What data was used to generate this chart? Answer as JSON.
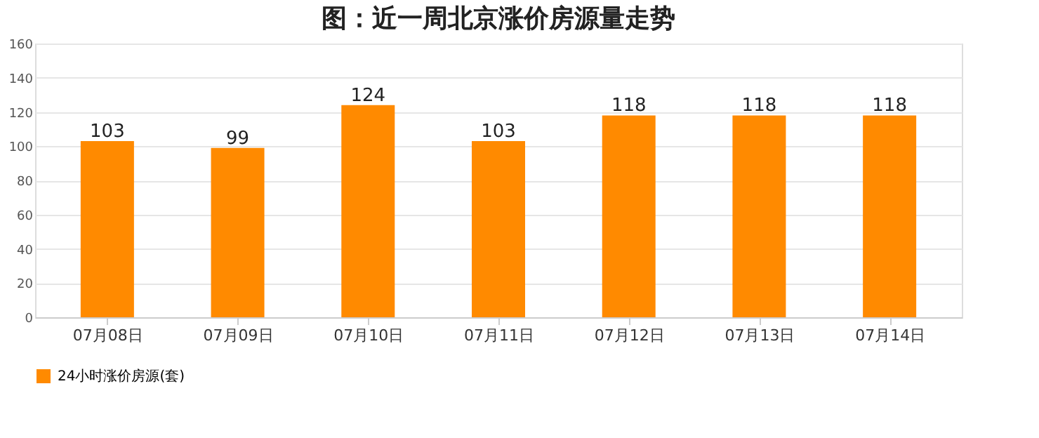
{
  "chart_data": {
    "type": "bar",
    "title": "图：近一周北京涨价房源量走势",
    "categories": [
      "07月08日",
      "07月09日",
      "07月10日",
      "07月11日",
      "07月12日",
      "07月13日",
      "07月14日"
    ],
    "series": [
      {
        "name": "24小时涨价房源(套)",
        "color": "#ff8a00",
        "values": [
          103,
          99,
          124,
          103,
          118,
          118,
          118
        ]
      }
    ],
    "ylim": [
      0,
      160
    ],
    "yticks": [
      0,
      20,
      40,
      60,
      80,
      100,
      120,
      140,
      160
    ],
    "grid": "y",
    "data_labels": true,
    "legend": "bottom"
  }
}
